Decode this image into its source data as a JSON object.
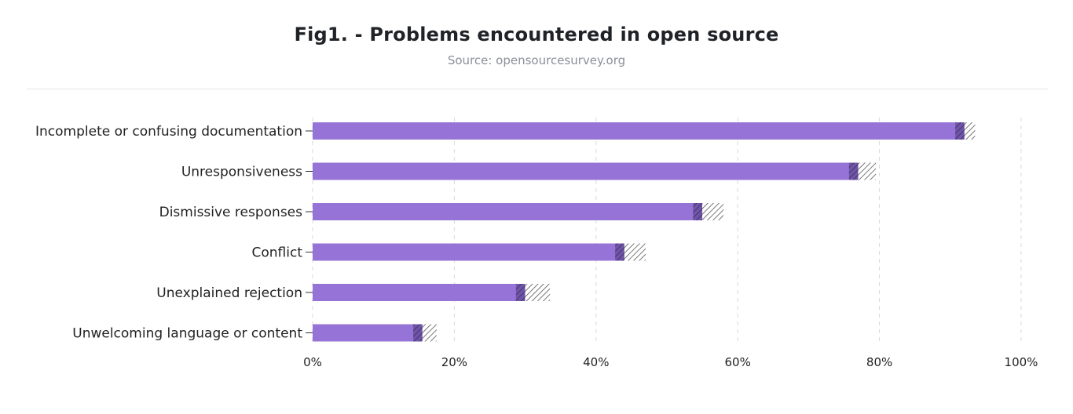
{
  "chart_data": {
    "type": "bar",
    "orientation": "horizontal",
    "title": "Fig1. - Problems encountered in open source",
    "subtitle": "Source: opensourcesurvey.org",
    "categories": [
      "Incomplete or confusing documentation",
      "Unresponsiveness",
      "Dismissive responses",
      "Conflict",
      "Unexplained rejection",
      "Unwelcoming language or content"
    ],
    "values": [
      92,
      77,
      55,
      44,
      30,
      15.5
    ],
    "error_range": [
      [
        92,
        93.5
      ],
      [
        77,
        79.5
      ],
      [
        55,
        58
      ],
      [
        44,
        47
      ],
      [
        30,
        33.5
      ],
      [
        15.5,
        17.5
      ]
    ],
    "xlim": [
      0,
      100
    ],
    "xticks": [
      "0%",
      "20%",
      "40%",
      "60%",
      "80%",
      "100%"
    ],
    "grid": "vertical dashed",
    "colors": {
      "bar": "#9673d6",
      "hatch": "#555555"
    }
  }
}
